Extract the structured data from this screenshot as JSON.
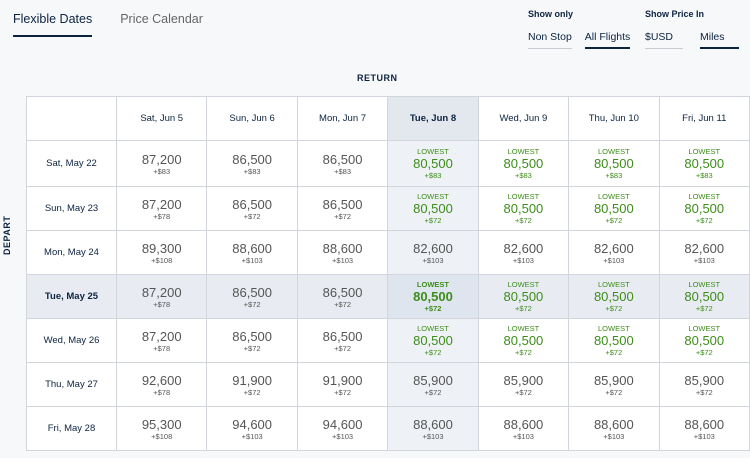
{
  "tabs": [
    {
      "label": "Flexible Dates",
      "active": true
    },
    {
      "label": "Price Calendar",
      "active": false
    }
  ],
  "filters": {
    "show_only": {
      "label": "Show only",
      "options": [
        "Non Stop",
        "All Flights"
      ],
      "selected": "All Flights"
    },
    "show_price_in": {
      "label": "Show Price In",
      "options": [
        "$USD",
        "Miles"
      ],
      "selected": "Miles"
    }
  },
  "return_label": "RETURN",
  "depart_label": "DEPART",
  "lowest_label": "LOWEST",
  "return_dates": [
    "Sat, Jun 5",
    "Sun, Jun 6",
    "Mon, Jun 7",
    "Tue, Jun 8",
    "Wed, Jun 9",
    "Thu, Jun 10",
    "Fri, Jun 11"
  ],
  "selected_return_index": 3,
  "selected_depart_index": 3,
  "rows": [
    {
      "depart": "Sat, May 22",
      "cells": [
        {
          "miles": "87,200",
          "taxes": "+$83",
          "lowest": false
        },
        {
          "miles": "86,500",
          "taxes": "+$83",
          "lowest": false
        },
        {
          "miles": "86,500",
          "taxes": "+$83",
          "lowest": false
        },
        {
          "miles": "80,500",
          "taxes": "+$83",
          "lowest": true
        },
        {
          "miles": "80,500",
          "taxes": "+$83",
          "lowest": true
        },
        {
          "miles": "80,500",
          "taxes": "+$83",
          "lowest": true
        },
        {
          "miles": "80,500",
          "taxes": "+$83",
          "lowest": true
        }
      ]
    },
    {
      "depart": "Sun, May 23",
      "cells": [
        {
          "miles": "87,200",
          "taxes": "+$78",
          "lowest": false
        },
        {
          "miles": "86,500",
          "taxes": "+$72",
          "lowest": false
        },
        {
          "miles": "86,500",
          "taxes": "+$72",
          "lowest": false
        },
        {
          "miles": "80,500",
          "taxes": "+$72",
          "lowest": true
        },
        {
          "miles": "80,500",
          "taxes": "+$72",
          "lowest": true
        },
        {
          "miles": "80,500",
          "taxes": "+$72",
          "lowest": true
        },
        {
          "miles": "80,500",
          "taxes": "+$72",
          "lowest": true
        }
      ]
    },
    {
      "depart": "Mon, May 24",
      "cells": [
        {
          "miles": "89,300",
          "taxes": "+$108",
          "lowest": false
        },
        {
          "miles": "88,600",
          "taxes": "+$103",
          "lowest": false
        },
        {
          "miles": "88,600",
          "taxes": "+$103",
          "lowest": false
        },
        {
          "miles": "82,600",
          "taxes": "+$103",
          "lowest": false
        },
        {
          "miles": "82,600",
          "taxes": "+$103",
          "lowest": false
        },
        {
          "miles": "82,600",
          "taxes": "+$103",
          "lowest": false
        },
        {
          "miles": "82,600",
          "taxes": "+$103",
          "lowest": false
        }
      ]
    },
    {
      "depart": "Tue, May 25",
      "cells": [
        {
          "miles": "87,200",
          "taxes": "+$78",
          "lowest": false
        },
        {
          "miles": "86,500",
          "taxes": "+$72",
          "lowest": false
        },
        {
          "miles": "86,500",
          "taxes": "+$72",
          "lowest": false
        },
        {
          "miles": "80,500",
          "taxes": "+$72",
          "lowest": true
        },
        {
          "miles": "80,500",
          "taxes": "+$72",
          "lowest": true
        },
        {
          "miles": "80,500",
          "taxes": "+$72",
          "lowest": true
        },
        {
          "miles": "80,500",
          "taxes": "+$72",
          "lowest": true
        }
      ]
    },
    {
      "depart": "Wed, May 26",
      "cells": [
        {
          "miles": "87,200",
          "taxes": "+$78",
          "lowest": false
        },
        {
          "miles": "86,500",
          "taxes": "+$72",
          "lowest": false
        },
        {
          "miles": "86,500",
          "taxes": "+$72",
          "lowest": false
        },
        {
          "miles": "80,500",
          "taxes": "+$72",
          "lowest": true
        },
        {
          "miles": "80,500",
          "taxes": "+$72",
          "lowest": true
        },
        {
          "miles": "80,500",
          "taxes": "+$72",
          "lowest": true
        },
        {
          "miles": "80,500",
          "taxes": "+$72",
          "lowest": true
        }
      ]
    },
    {
      "depart": "Thu, May 27",
      "cells": [
        {
          "miles": "92,600",
          "taxes": "+$78",
          "lowest": false
        },
        {
          "miles": "91,900",
          "taxes": "+$72",
          "lowest": false
        },
        {
          "miles": "91,900",
          "taxes": "+$72",
          "lowest": false
        },
        {
          "miles": "85,900",
          "taxes": "+$72",
          "lowest": false
        },
        {
          "miles": "85,900",
          "taxes": "+$72",
          "lowest": false
        },
        {
          "miles": "85,900",
          "taxes": "+$72",
          "lowest": false
        },
        {
          "miles": "85,900",
          "taxes": "+$72",
          "lowest": false
        }
      ]
    },
    {
      "depart": "Fri, May 28",
      "cells": [
        {
          "miles": "95,300",
          "taxes": "+$108",
          "lowest": false
        },
        {
          "miles": "94,600",
          "taxes": "+$103",
          "lowest": false
        },
        {
          "miles": "94,600",
          "taxes": "+$103",
          "lowest": false
        },
        {
          "miles": "88,600",
          "taxes": "+$103",
          "lowest": false
        },
        {
          "miles": "88,600",
          "taxes": "+$103",
          "lowest": false
        },
        {
          "miles": "88,600",
          "taxes": "+$103",
          "lowest": false
        },
        {
          "miles": "88,600",
          "taxes": "+$103",
          "lowest": false
        }
      ]
    }
  ],
  "colors": {
    "navy": "#0c2340",
    "green": "#3d8d19",
    "selected_bg": "#e3e8ef"
  }
}
